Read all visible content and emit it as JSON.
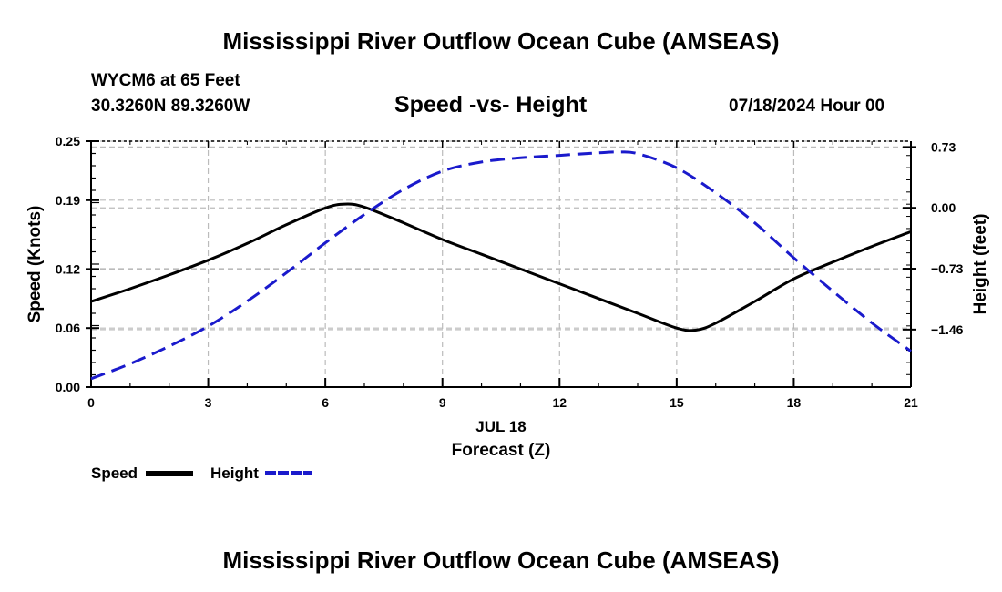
{
  "header": {
    "title": "Mississippi River Outflow Ocean Cube (AMSEAS)",
    "station": "WYCM6 at 65 Feet",
    "location": "30.3260N  89.3260W",
    "subtitle": "Speed -vs- Height",
    "datetime": "07/18/2024 Hour 00",
    "footer_title": "Mississippi River Outflow Ocean Cube (AMSEAS)"
  },
  "legend": {
    "speed_label": "Speed",
    "height_label": "Height"
  },
  "colors": {
    "speed": "#000000",
    "height": "#1a1acc",
    "grid": "#bbbbbb"
  },
  "chart_data": {
    "type": "line",
    "title": "Speed -vs- Height",
    "xlabel": "Forecast (Z)",
    "xlabel_date": "JUL 18",
    "ylabel_left": "Speed (Knots)",
    "ylabel_right": "Height (feet)",
    "xlim": [
      0,
      21
    ],
    "ylim_left": [
      0,
      0.25
    ],
    "ylim_right": [
      -2.15,
      0.8
    ],
    "x_ticks": [
      0,
      3,
      6,
      9,
      12,
      15,
      18,
      21
    ],
    "x_tick_labels": [
      "0",
      "3",
      "6",
      "9",
      "12",
      "15",
      "18",
      "21"
    ],
    "y_left_ticks": [
      0.0,
      0.06,
      0.12,
      0.19,
      0.25
    ],
    "y_left_tick_labels": [
      "0.00",
      "0.06",
      "0.12",
      "0.19",
      "0.25"
    ],
    "y_right_ticks": [
      0.73,
      0.0,
      -0.73,
      -1.46
    ],
    "y_right_tick_labels": [
      "0.73",
      "0.00",
      "−0.73",
      "−1.46"
    ],
    "series": [
      {
        "name": "Speed",
        "axis": "left",
        "style": "solid",
        "x": [
          0,
          1,
          2,
          3,
          4,
          5,
          6,
          6.5,
          7,
          8,
          9,
          10,
          11,
          12,
          13,
          14,
          15,
          15.5,
          16,
          17,
          18,
          19,
          20,
          21
        ],
        "values": [
          0.087,
          0.1,
          0.114,
          0.129,
          0.146,
          0.165,
          0.182,
          0.186,
          0.183,
          0.167,
          0.15,
          0.135,
          0.12,
          0.105,
          0.09,
          0.075,
          0.06,
          0.058,
          0.065,
          0.087,
          0.11,
          0.127,
          0.143,
          0.158
        ]
      },
      {
        "name": "Height",
        "axis": "right",
        "style": "dashed",
        "x": [
          0,
          1,
          2,
          3,
          4,
          5,
          6,
          7,
          8,
          9,
          10,
          11,
          12,
          13,
          13.5,
          14,
          15,
          16,
          17,
          18,
          19,
          20,
          21
        ],
        "values": [
          -2.05,
          -1.87,
          -1.66,
          -1.42,
          -1.12,
          -0.78,
          -0.42,
          -0.08,
          0.22,
          0.44,
          0.55,
          0.6,
          0.63,
          0.66,
          0.67,
          0.65,
          0.48,
          0.18,
          -0.18,
          -0.6,
          -1.0,
          -1.38,
          -1.72
        ]
      }
    ]
  }
}
